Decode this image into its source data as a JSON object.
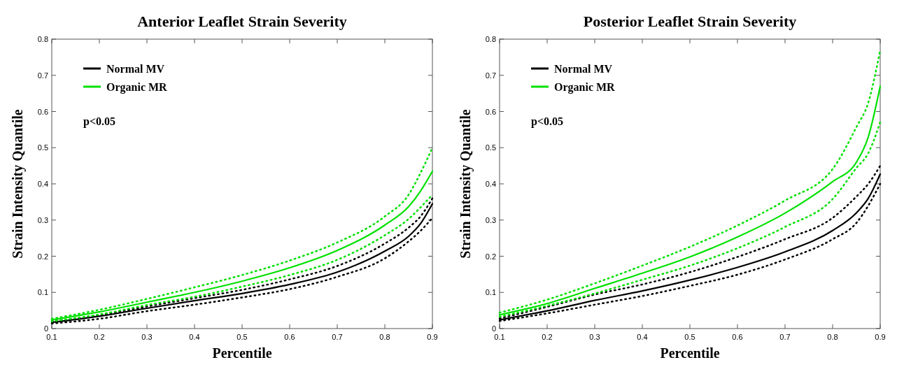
{
  "chart_data": [
    {
      "type": "line",
      "title": "Anterior Leaflet Strain Severity",
      "xlabel": "Percentile",
      "ylabel": "Strain Intensity Quantile",
      "x": [
        0.1,
        0.2,
        0.3,
        0.4,
        0.5,
        0.6,
        0.7,
        0.8,
        0.85,
        0.875,
        0.9
      ],
      "xlim": [
        0.1,
        0.9
      ],
      "xticks": [
        0.1,
        0.2,
        0.3,
        0.4,
        0.5,
        0.6,
        0.7,
        0.8,
        0.9
      ],
      "ylim": [
        0,
        0.8
      ],
      "yticks": [
        0,
        0.1,
        0.2,
        0.3,
        0.4,
        0.5,
        0.6,
        0.7,
        0.8
      ],
      "legend": "top left",
      "annotations": [
        "p<0.05"
      ],
      "series": [
        {
          "name": "Normal MV",
          "color": "#000000",
          "line_style": "solid",
          "values": [
            0.017,
            0.034,
            0.056,
            0.077,
            0.097,
            0.122,
            0.156,
            0.214,
            0.255,
            0.29,
            0.345
          ]
        },
        {
          "name": "Organic MR",
          "color": "#00e000",
          "line_style": "solid",
          "values": [
            0.024,
            0.046,
            0.073,
            0.1,
            0.131,
            0.168,
            0.216,
            0.286,
            0.337,
            0.38,
            0.435
          ]
        },
        {
          "color": "#000000",
          "line_style": "dotted",
          "values": [
            0.02,
            0.037,
            0.061,
            0.084,
            0.107,
            0.136,
            0.173,
            0.235,
            0.279,
            0.31,
            0.36
          ]
        },
        {
          "color": "#000000",
          "line_style": "dotted",
          "values": [
            0.014,
            0.027,
            0.048,
            0.066,
            0.086,
            0.109,
            0.143,
            0.194,
            0.241,
            0.27,
            0.306
          ]
        },
        {
          "color": "#00e000",
          "line_style": "dotted",
          "values": [
            0.027,
            0.052,
            0.082,
            0.114,
            0.148,
            0.188,
            0.238,
            0.31,
            0.37,
            0.43,
            0.5
          ]
        },
        {
          "color": "#00e000",
          "line_style": "dotted",
          "values": [
            0.02,
            0.039,
            0.065,
            0.088,
            0.116,
            0.148,
            0.19,
            0.258,
            0.303,
            0.335,
            0.37
          ]
        }
      ]
    },
    {
      "type": "line",
      "title": "Posterior Leaflet Strain Severity",
      "xlabel": "Percentile",
      "ylabel": "Strain Intensity Quantile",
      "x": [
        0.1,
        0.2,
        0.3,
        0.4,
        0.5,
        0.6,
        0.7,
        0.8,
        0.85,
        0.875,
        0.9
      ],
      "xlim": [
        0.1,
        0.9
      ],
      "xticks": [
        0.1,
        0.2,
        0.3,
        0.4,
        0.5,
        0.6,
        0.7,
        0.8,
        0.9
      ],
      "ylim": [
        0,
        0.8
      ],
      "yticks": [
        0,
        0.1,
        0.2,
        0.3,
        0.4,
        0.5,
        0.6,
        0.7,
        0.8
      ],
      "legend": "top left",
      "annotations": [
        "p<0.05"
      ],
      "series": [
        {
          "name": "Normal MV",
          "color": "#000000",
          "line_style": "solid",
          "values": [
            0.024,
            0.049,
            0.078,
            0.104,
            0.134,
            0.169,
            0.212,
            0.271,
            0.32,
            0.36,
            0.427
          ]
        },
        {
          "name": "Organic MR",
          "color": "#00e000",
          "line_style": "solid",
          "values": [
            0.038,
            0.069,
            0.111,
            0.153,
            0.198,
            0.253,
            0.319,
            0.406,
            0.46,
            0.53,
            0.67
          ]
        },
        {
          "color": "#000000",
          "line_style": "dotted",
          "values": [
            0.028,
            0.06,
            0.094,
            0.122,
            0.156,
            0.198,
            0.247,
            0.306,
            0.365,
            0.4,
            0.45
          ]
        },
        {
          "color": "#000000",
          "line_style": "dotted",
          "values": [
            0.021,
            0.042,
            0.066,
            0.09,
            0.118,
            0.149,
            0.191,
            0.247,
            0.292,
            0.34,
            0.4
          ]
        },
        {
          "color": "#00e000",
          "line_style": "dotted",
          "values": [
            0.044,
            0.08,
            0.125,
            0.174,
            0.226,
            0.285,
            0.354,
            0.441,
            0.557,
            0.625,
            0.77
          ]
        },
        {
          "color": "#00e000",
          "line_style": "dotted",
          "values": [
            0.033,
            0.063,
            0.097,
            0.135,
            0.174,
            0.222,
            0.281,
            0.358,
            0.444,
            0.485,
            0.571
          ]
        }
      ]
    }
  ]
}
